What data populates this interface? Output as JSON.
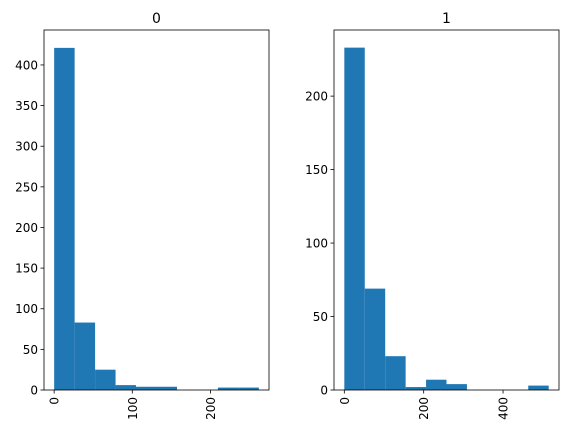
{
  "chart_data": [
    {
      "type": "bar",
      "title": "0",
      "bin_edges": [
        0,
        26.2,
        52.4,
        78.6,
        104.8,
        131.0,
        157.2,
        183.4,
        209.6,
        235.8,
        262.0
      ],
      "values": [
        421,
        83,
        25,
        6,
        4,
        4,
        0,
        0,
        3,
        3
      ],
      "xlim": [
        -13,
        275
      ],
      "ylim": [
        0,
        443
      ],
      "xticks": [
        0,
        100,
        200
      ],
      "xtick_labels": [
        "0",
        "100",
        "200"
      ],
      "yticks": [
        0,
        50,
        100,
        150,
        200,
        250,
        300,
        350,
        400
      ],
      "ytick_labels": [
        "0",
        "50",
        "100",
        "150",
        "200",
        "250",
        "300",
        "350",
        "400"
      ],
      "color": "#1f77b4",
      "grid": false
    },
    {
      "type": "bar",
      "title": "1",
      "bin_edges": [
        0,
        51.5,
        103.0,
        154.5,
        206.0,
        257.5,
        309.0,
        360.5,
        412.0,
        463.5,
        515.0
      ],
      "values": [
        233,
        69,
        23,
        2,
        7,
        4,
        0,
        0,
        0,
        3
      ],
      "xlim": [
        -26,
        541
      ],
      "ylim": [
        0,
        245
      ],
      "xticks": [
        0,
        200,
        400
      ],
      "xtick_labels": [
        "0",
        "200",
        "400"
      ],
      "yticks": [
        0,
        50,
        100,
        150,
        200
      ],
      "ytick_labels": [
        "0",
        "50",
        "100",
        "150",
        "200"
      ],
      "color": "#1f77b4",
      "grid": false
    }
  ]
}
